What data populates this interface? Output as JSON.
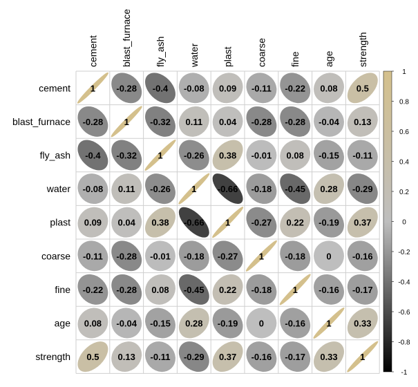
{
  "chart_data": {
    "type": "heatmap",
    "title": "",
    "variables": [
      "cement",
      "blast_furnace",
      "fly_ash",
      "water",
      "plast",
      "coarse",
      "fine",
      "age",
      "strength"
    ],
    "matrix": [
      [
        1,
        -0.28,
        -0.4,
        -0.08,
        0.09,
        -0.11,
        -0.22,
        0.08,
        0.5
      ],
      [
        -0.28,
        1,
        -0.32,
        0.11,
        0.04,
        -0.28,
        -0.28,
        -0.04,
        0.13
      ],
      [
        -0.4,
        -0.32,
        1,
        -0.26,
        0.38,
        -0.01,
        0.08,
        -0.15,
        -0.11
      ],
      [
        -0.08,
        0.11,
        -0.26,
        1,
        -0.66,
        -0.18,
        -0.45,
        0.28,
        -0.29
      ],
      [
        0.09,
        0.04,
        0.38,
        -0.66,
        1,
        -0.27,
        0.22,
        -0.19,
        0.37
      ],
      [
        -0.11,
        -0.28,
        -0.01,
        -0.18,
        -0.27,
        1,
        -0.18,
        0,
        -0.16
      ],
      [
        -0.22,
        -0.28,
        0.08,
        -0.45,
        0.22,
        -0.18,
        1,
        -0.16,
        -0.17
      ],
      [
        0.08,
        -0.04,
        -0.15,
        0.28,
        -0.19,
        0,
        -0.16,
        1,
        0.33
      ],
      [
        0.5,
        0.13,
        -0.11,
        -0.29,
        0.37,
        -0.16,
        -0.17,
        0.33,
        1
      ]
    ],
    "labels": [
      [
        "1",
        "-0.28",
        "-0.4",
        "-0.08",
        "0.09",
        "-0.11",
        "-0.22",
        "0.08",
        "0.5"
      ],
      [
        "-0.28",
        "1",
        "-0.32",
        "0.11",
        "0.04",
        "-0.28",
        "-0.28",
        "-0.04",
        "0.13"
      ],
      [
        "-0.4",
        "-0.32",
        "1",
        "-0.26",
        "0.38",
        "-0.01",
        "0.08",
        "-0.15",
        "-0.11"
      ],
      [
        "-0.08",
        "0.11",
        "-0.26",
        "1",
        "-0.66",
        "-0.18",
        "-0.45",
        "0.28",
        "-0.29"
      ],
      [
        "0.09",
        "0.04",
        "0.38",
        "-0.66",
        "1",
        "-0.27",
        "0.22",
        "-0.19",
        "0.37"
      ],
      [
        "-0.11",
        "-0.28",
        "-0.01",
        "-0.18",
        "-0.27",
        "1",
        "-0.18",
        "0",
        "-0.16"
      ],
      [
        "-0.22",
        "-0.28",
        "0.08",
        "-0.45",
        "0.22",
        "-0.18",
        "1",
        "-0.16",
        "-0.17"
      ],
      [
        "0.08",
        "-0.04",
        "-0.15",
        "0.28",
        "-0.19",
        "0",
        "-0.16",
        "1",
        "0.33"
      ],
      [
        "0.5",
        "0.13",
        "-0.11",
        "-0.29",
        "0.37",
        "-0.16",
        "-0.17",
        "0.33",
        "1"
      ]
    ],
    "legend": {
      "range": [
        -1,
        1
      ],
      "ticks": [
        "1",
        "0.8",
        "0.6",
        "0.4",
        "0.2",
        "0",
        "-0.2",
        "-0.4",
        "-0.6",
        "-0.8",
        "-1"
      ],
      "placement": "right"
    },
    "colors": {
      "negative_end": "#000000",
      "zero": "#bebebe",
      "positive_end": "#d4c08c",
      "grid": "#cfcfcf"
    }
  }
}
